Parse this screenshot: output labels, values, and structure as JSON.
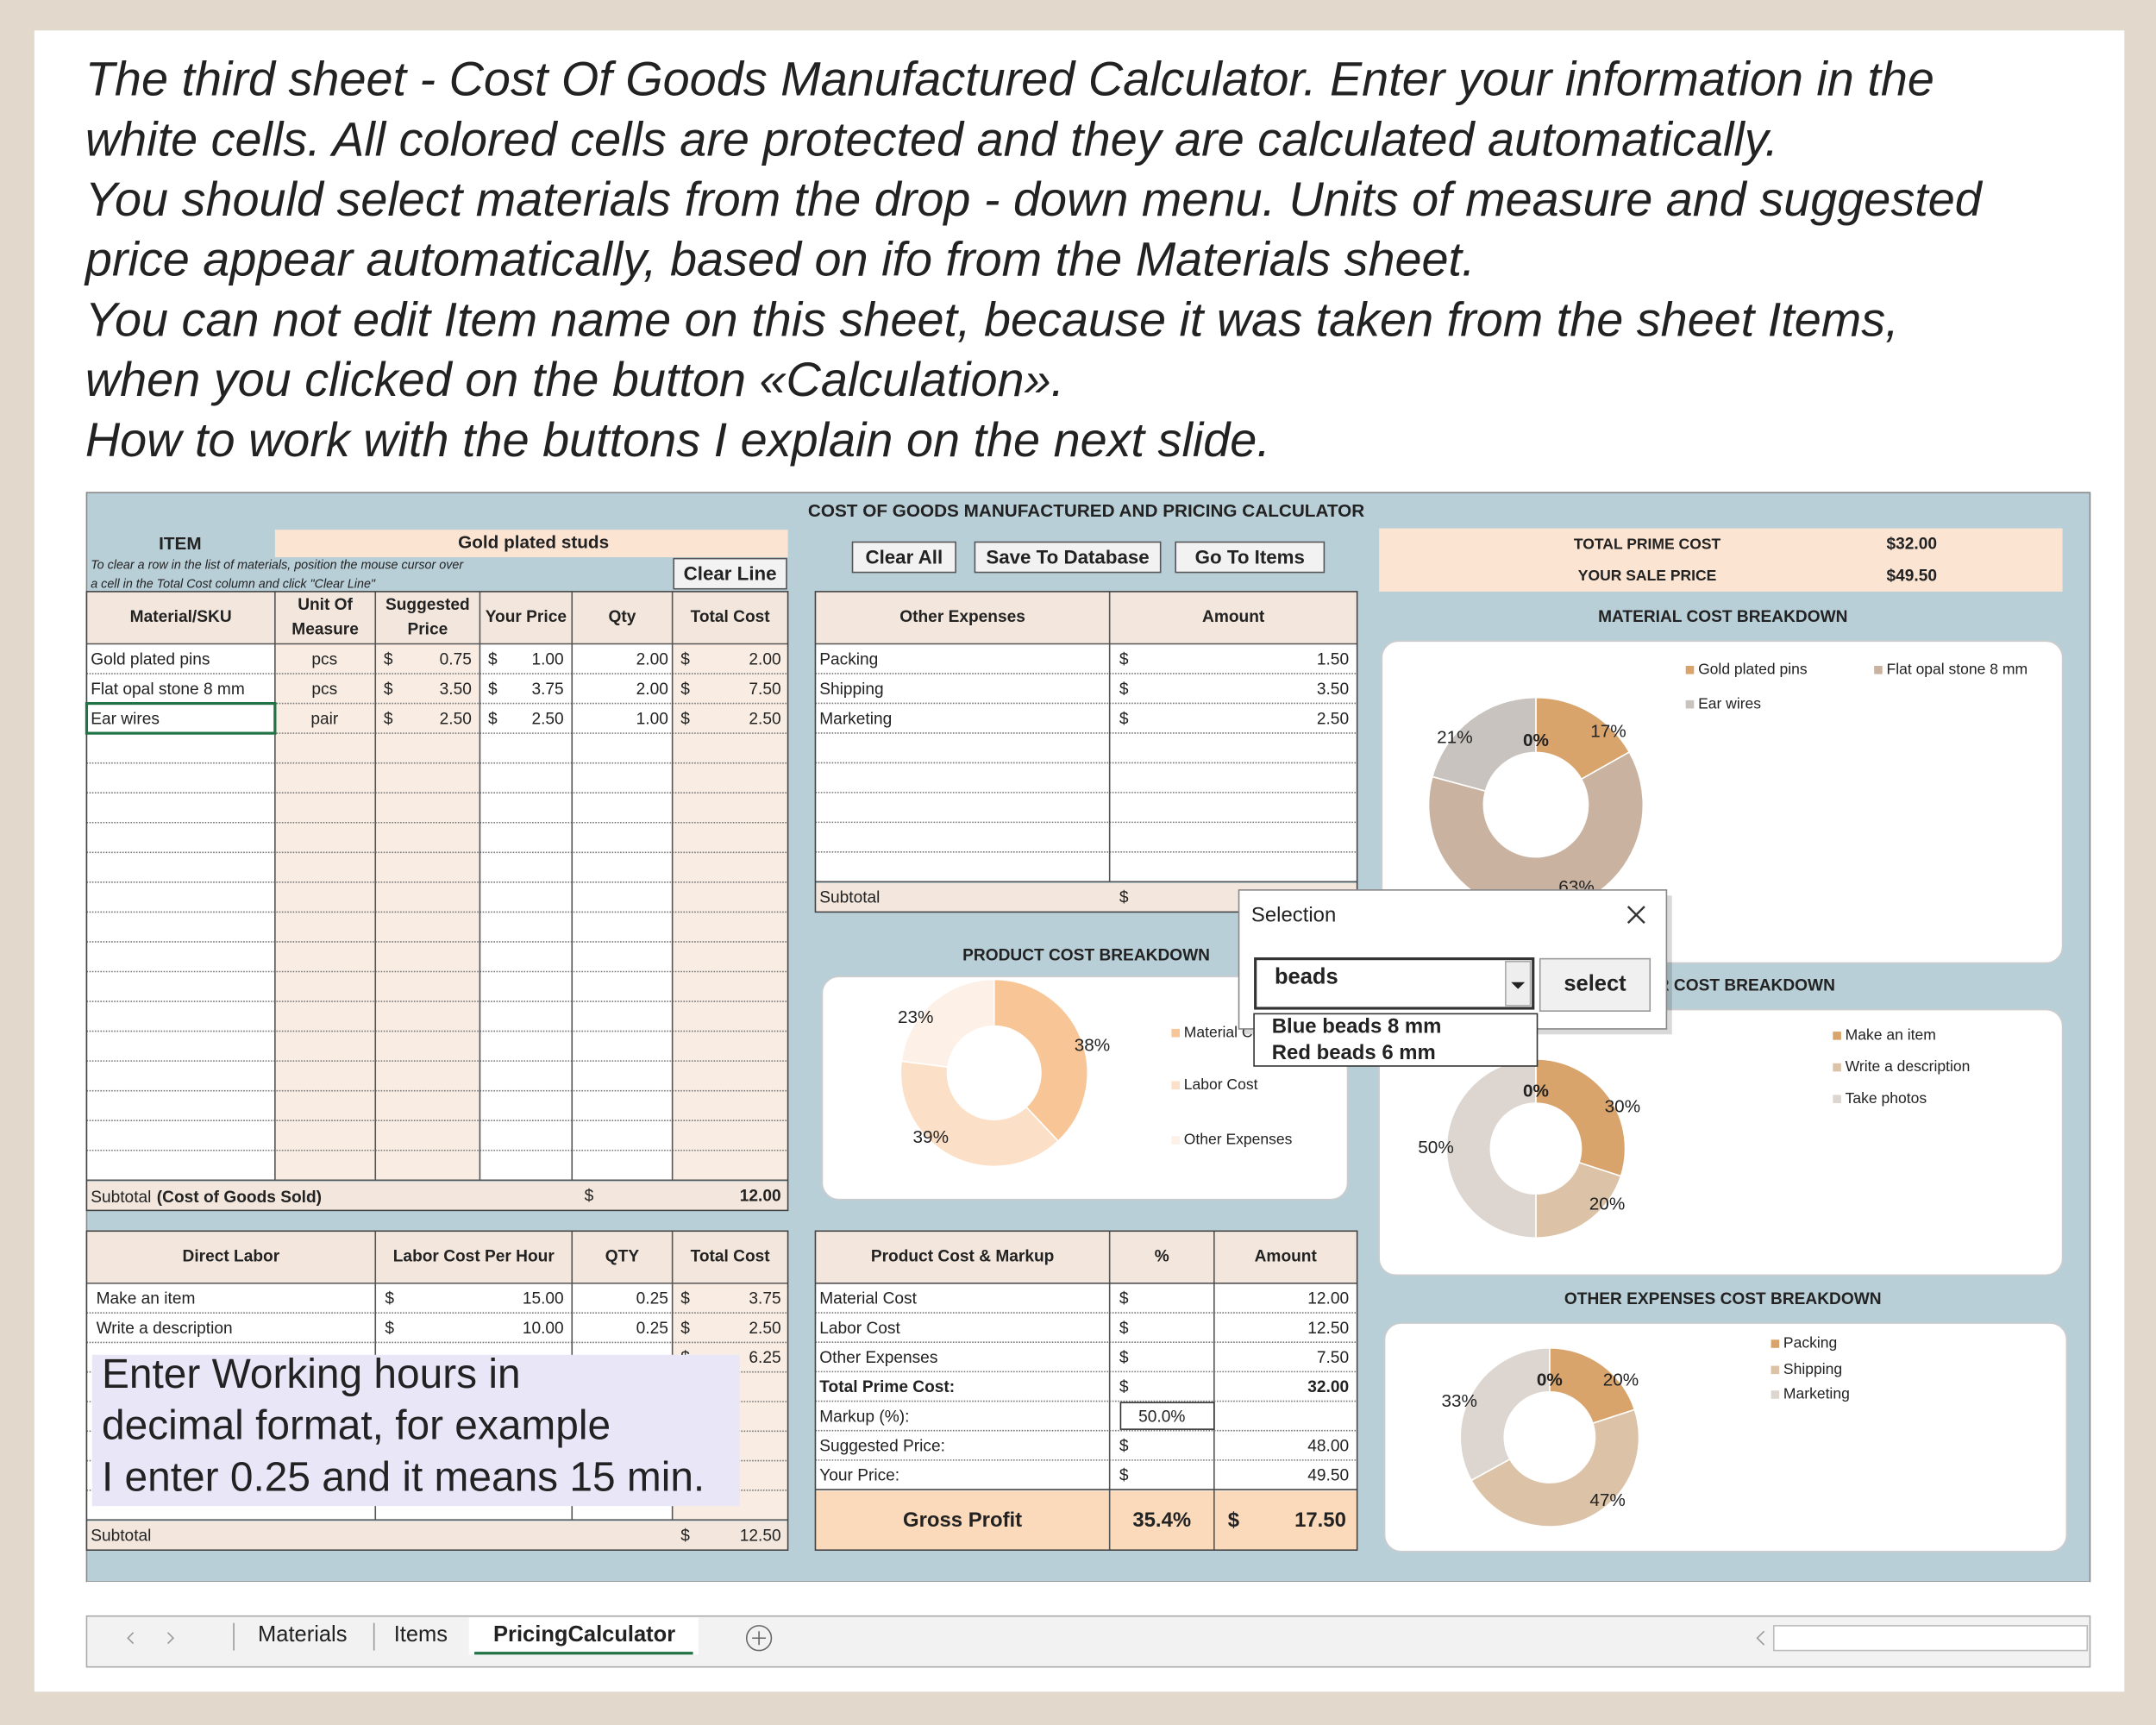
{
  "instructions": [
    "The third sheet - Cost Of Goods Manufactured Calculator. Enter your information in the",
    "white cells. All colored cells are protected and they are calculated automatically.",
    "You should  select materials from the drop - down menu. Units of measure and suggested",
    "price appear automatically, based on ifo from the Materials sheet.",
    "You can not edit Item name on this sheet, because it was taken from the sheet Items,",
    "when you clicked on the button «Calculation».",
    "How to work with the buttons I explain on the next slide."
  ],
  "sheet": {
    "title": "COST OF GOODS MANUFACTURED AND PRICING CALCULATOR",
    "currency": "$",
    "item_label": "ITEM",
    "item_name": "Gold plated studs",
    "clear_hint": [
      "To clear a row in the list of materials, position the mouse cursor over",
      "a cell in the Total Cost column and click \"Clear Line\""
    ],
    "buttons": [
      "Clear Line",
      "Clear All",
      "Save To Database",
      "Go To Items"
    ],
    "summary": [
      {
        "label": "TOTAL PRIME COST",
        "value": "$32.00"
      },
      {
        "label": "YOUR SALE PRICE",
        "value": "$49.50"
      }
    ],
    "materials": {
      "headers": [
        [
          "Material/SKU"
        ],
        [
          "Unit Of",
          "Measure"
        ],
        [
          "Suggested",
          "Price"
        ],
        [
          "Your Price"
        ],
        [
          "Qty"
        ],
        [
          "Total Cost"
        ]
      ],
      "rows": [
        [
          "Gold plated pins",
          "pcs",
          "0.75",
          "1.00",
          "2.00",
          "2.00"
        ],
        [
          "Flat opal stone 8 mm",
          "pcs",
          "3.50",
          "3.75",
          "2.00",
          "7.50"
        ],
        [
          "Ear wires",
          "pair",
          "2.50",
          "2.50",
          "1.00",
          "2.50"
        ]
      ],
      "subtotal_label": "Subtotal",
      "subtotal_note": "(Cost of Goods Sold)",
      "subtotal": "12.00"
    },
    "other_expenses": {
      "headers": [
        "Other Expenses",
        "Amount"
      ],
      "rows": [
        [
          "Packing",
          "1.50"
        ],
        [
          "Shipping",
          "3.50"
        ],
        [
          "Marketing",
          "2.50"
        ]
      ],
      "subtotal_label": "Subtotal"
    },
    "labor": {
      "headers": [
        "Direct Labor",
        "Labor Cost Per Hour",
        "QTY",
        "Total Cost"
      ],
      "rows": [
        {
          "name": "Make an item",
          "rate": "15.00",
          "qty": "0.25",
          "total": "3.75"
        },
        {
          "name": "Write a description",
          "rate": "10.00",
          "qty": "0.25",
          "total": "2.50"
        },
        {
          "total": "6.25"
        }
      ],
      "subtotal_label": "Subtotal",
      "subtotal": "12.50"
    },
    "product_cost": {
      "headers": [
        "Product Cost & Markup",
        "%",
        "Amount"
      ],
      "rows": [
        {
          "label": "Material Cost",
          "amount": "12.00"
        },
        {
          "label": "Labor Cost",
          "amount": "12.50"
        },
        {
          "label": "Other Expenses",
          "amount": "7.50"
        },
        {
          "label": "Total Prime Cost:",
          "amount": "32.00"
        },
        {
          "label": "Markup (%):",
          "percent": "50.0%"
        },
        {
          "label": "Suggested Price:",
          "amount": "48.00"
        },
        {
          "label": "Your Price:",
          "amount": "49.50"
        }
      ],
      "gross": {
        "label": "Gross Profit",
        "percent": "35.4%",
        "amount": "17.50"
      }
    },
    "charts": [
      {
        "type": "pie",
        "title": "MATERIAL COST BREAKDOWN",
        "categories": [
          "Gold plated pins",
          "Flat opal stone 8 mm",
          "Ear wires",
          null
        ],
        "values": [
          17,
          63,
          21,
          0
        ],
        "value_labels": [
          "17%",
          "63%",
          "21%",
          "0%"
        ],
        "colors": [
          "#d9a46c",
          "#c9b3a0",
          "#c8c3be",
          "#e8dccf"
        ]
      },
      {
        "type": "pie",
        "title": "PRODUCT COST BREAKDOWN",
        "categories": [
          "Material Cost",
          "Labor Cost",
          "Other Expenses"
        ],
        "values": [
          38,
          39,
          23
        ],
        "value_labels": [
          "38%",
          "39%",
          "23%"
        ],
        "colors": [
          "#f8c596",
          "#fbdfc6",
          "#fdf0e6"
        ]
      },
      {
        "type": "pie",
        "title": "LABOR COST BREAKDOWN",
        "categories": [
          "Make an item",
          "Write a description",
          "Take photos",
          null
        ],
        "values": [
          30,
          20,
          50,
          0
        ],
        "value_labels": [
          "30%",
          "20%",
          "50%",
          "0%"
        ],
        "colors": [
          "#d9a46c",
          "#dcc3a8",
          "#ddd6d0",
          "#e8dccf"
        ]
      },
      {
        "type": "pie",
        "title": "OTHER EXPENSES COST BREAKDOWN",
        "categories": [
          "Packing",
          "Shipping",
          "Marketing",
          null
        ],
        "values": [
          20,
          47,
          33,
          0
        ],
        "value_labels": [
          "20%",
          "47%",
          "33%",
          "0%"
        ],
        "colors": [
          "#d9a46c",
          "#dcc3a8",
          "#ddd6d0",
          "#e8dccf"
        ]
      }
    ],
    "tabs": [
      "Materials",
      "Items",
      "PricingCalculator"
    ]
  },
  "note": [
    "Enter Working hours in",
    "decimal format, for example",
    "I enter 0.25 and it means 15 min."
  ],
  "dialog": {
    "title": "Selection",
    "input": "beads",
    "button": "select",
    "options": [
      "Blue beads 8 mm",
      "Red beads 6 mm"
    ]
  }
}
